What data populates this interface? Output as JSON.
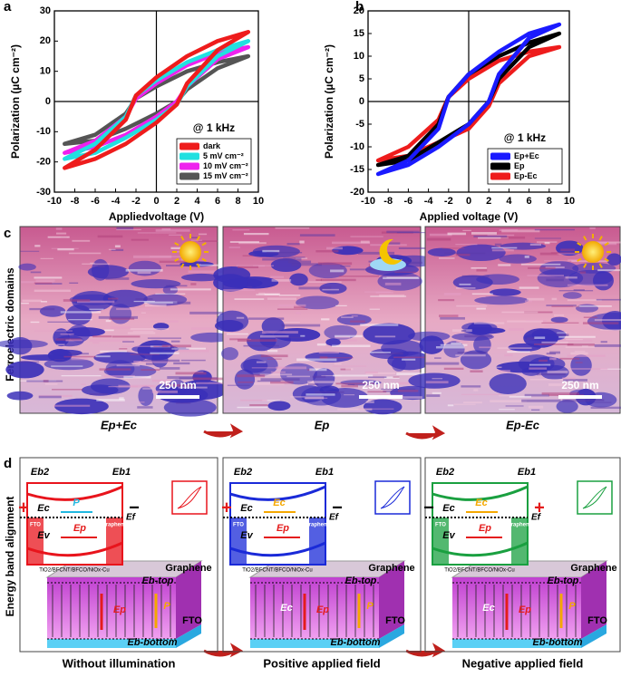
{
  "figure_labels": [
    "a",
    "b",
    "c",
    "d"
  ],
  "chart_data": [
    {
      "type": "line",
      "xlabel": "Appliedvoltage (V)",
      "ylabel": "Polarization (µC cm⁻²)",
      "annotation": "@ 1 kHz",
      "legend": "lower right",
      "x": [
        9,
        6,
        3,
        0,
        -2,
        -3,
        -6,
        -9,
        -6,
        -3,
        0,
        2,
        3,
        6
      ],
      "xlim": [
        -10,
        10
      ],
      "xticks": [
        -10,
        -8,
        -6,
        -4,
        -2,
        0,
        2,
        4,
        6,
        8,
        10
      ],
      "ylim": [
        -30,
        30
      ],
      "yticks": [
        -30,
        -20,
        -10,
        0,
        10,
        20,
        30
      ],
      "series": [
        {
          "name": "dark",
          "color": "#ee1c1c",
          "values": [
            23,
            20,
            15,
            8,
            2,
            -6,
            -16,
            -22,
            -19,
            -14,
            -7,
            -1,
            6,
            17
          ]
        },
        {
          "name": "5 mV cm⁻²",
          "color": "#22e0e0",
          "values": [
            20,
            17,
            13,
            7,
            2,
            -5,
            -14,
            -19,
            -17,
            -12,
            -6,
            -1,
            5,
            15
          ]
        },
        {
          "name": "10 mV cm⁻²",
          "color": "#ee22ee",
          "values": [
            18,
            16,
            12,
            6,
            1,
            -5,
            -13,
            -17,
            -15,
            -11,
            -5,
            0,
            5,
            14
          ]
        },
        {
          "name": "15 mV cm⁻²",
          "color": "#555555",
          "values": [
            15,
            13,
            10,
            5,
            1,
            -4,
            -11,
            -14,
            -13,
            -9,
            -4,
            0,
            4,
            11
          ]
        }
      ]
    },
    {
      "type": "line",
      "xlabel": "Applied voltage (V)",
      "ylabel": "Polarization (µC cm⁻²)",
      "annotation": "@ 1 kHz",
      "legend": "lower right",
      "x": [
        9,
        6,
        3,
        0,
        -2,
        -3,
        -6,
        -9,
        -6,
        -3,
        0,
        2,
        3,
        6
      ],
      "xlim": [
        -10,
        10
      ],
      "xticks": [
        -10,
        -8,
        -6,
        -4,
        -2,
        0,
        2,
        4,
        6,
        8,
        10
      ],
      "ylim": [
        -20,
        20
      ],
      "yticks": [
        -20,
        -15,
        -10,
        -5,
        0,
        5,
        10,
        15,
        20
      ],
      "series": [
        {
          "name": "Ep+Ec",
          "color": "#1a1aff",
          "values": [
            17,
            15,
            11,
            6,
            1,
            -6,
            -13,
            -16,
            -14,
            -10,
            -5,
            0,
            6,
            14
          ]
        },
        {
          "name": "Ep",
          "color": "#000000",
          "values": [
            15,
            13,
            10,
            6,
            1,
            -5,
            -12,
            -14,
            -13,
            -9,
            -5,
            0,
            5,
            12
          ]
        },
        {
          "name": "Ep-Ec",
          "color": "#ee1c1c",
          "values": [
            12,
            11,
            9,
            5,
            1,
            -4,
            -10,
            -13,
            -12,
            -9,
            -6,
            -1,
            4,
            10
          ]
        }
      ]
    }
  ],
  "afm": {
    "ylabel": "Ferroelectric domains",
    "scale_bars": [
      "250 nm",
      "250 nm",
      "250 nm"
    ],
    "captions": [
      "Ep+Ec",
      "Ep",
      "Ep-Ec"
    ],
    "icons": [
      "sun",
      "moon",
      "sun"
    ]
  },
  "bands": {
    "ylabel": "Energy band alignment",
    "panels": [
      {
        "color": "#e8141c",
        "caption": "Without illumination",
        "left_sign": "+",
        "right_sign": "−",
        "eb2": "Eb2",
        "eb1": "Eb1",
        "ec": "Ec",
        "ef": "Ef",
        "ev": "Ev",
        "ep": "Ep",
        "field": "P",
        "fto": "FTO",
        "graphene": "Graphene",
        "layer": "TiO2/BFCNT/BFCO/NiOx-Cu",
        "graphene2": "Graphene",
        "ebtop": "Eb-top",
        "ep2": "Ep",
        "p2": "P",
        "fto2": "FTO",
        "ebbottom": "Eb-bottom"
      },
      {
        "color": "#1a2ad8",
        "caption": "Positive applied field",
        "left_sign": "+",
        "right_sign": "−",
        "eb2": "Eb2",
        "eb1": "Eb1",
        "ec": "Ec",
        "ef": "Ef",
        "ev": "Ev",
        "ep": "Ep",
        "field": "Ec",
        "fto": "FTO",
        "graphene": "Graphene",
        "layer": "TiO2/BFCNT/BFCO/NiOx-Cu",
        "graphene2": "Graphene",
        "ebtop": "Eb-top",
        "ep2": "Ep",
        "p2": "P",
        "ec2": "Ec",
        "fto2": "FTO",
        "ebbottom": "Eb-bottom"
      },
      {
        "color": "#1aa040",
        "caption": "Negative applied field",
        "left_sign": "−",
        "right_sign": "+",
        "eb2": "Eb2",
        "eb1": "Eb1",
        "ec": "Ec",
        "ef": "Ef",
        "ev": "Ev",
        "ep": "Ep",
        "field": "Ec",
        "fto": "FTO",
        "graphene": "Graphene",
        "layer": "TiO2/BFCNT/BFCO/NiOx-Cu",
        "graphene2": "Graphene",
        "ebtop": "Eb-top",
        "ep2": "Ep",
        "p2": "P",
        "ec2": "Ec",
        "fto2": "FTO",
        "ebbottom": "Eb-bottom"
      }
    ]
  }
}
